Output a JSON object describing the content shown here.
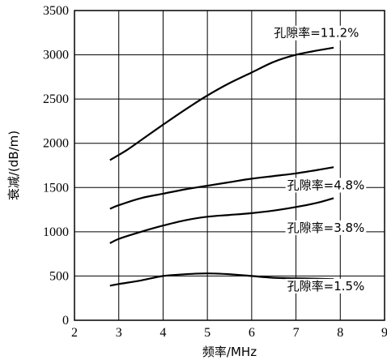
{
  "chart_data": {
    "type": "line",
    "xlabel": "频率/MHz",
    "ylabel": "衰减/(dB/m)",
    "xlim": [
      2,
      9
    ],
    "ylim": [
      0,
      3500
    ],
    "xticks": [
      2,
      3,
      4,
      5,
      6,
      7,
      8,
      9
    ],
    "yticks": [
      0,
      500,
      1000,
      1500,
      2000,
      2500,
      3000,
      3500
    ],
    "grid": true,
    "series": [
      {
        "name": "孔隙率=11.2%",
        "x": [
          2.8,
          3.2,
          3.6,
          4.0,
          4.5,
          5.0,
          5.5,
          6.0,
          6.5,
          7.0,
          7.5,
          7.85
        ],
        "y": [
          1810,
          1930,
          2070,
          2210,
          2380,
          2540,
          2680,
          2800,
          2920,
          3000,
          3050,
          3080
        ]
      },
      {
        "name": "孔隙率=4.8%",
        "x": [
          2.8,
          3.0,
          3.5,
          4.0,
          4.5,
          5.0,
          5.5,
          6.0,
          6.5,
          7.0,
          7.5,
          7.85
        ],
        "y": [
          1260,
          1300,
          1380,
          1430,
          1480,
          1520,
          1560,
          1600,
          1630,
          1660,
          1700,
          1730
        ]
      },
      {
        "name": "孔隙率=3.8%",
        "x": [
          2.8,
          3.0,
          3.5,
          4.0,
          4.5,
          5.0,
          5.5,
          6.0,
          6.5,
          7.0,
          7.5,
          7.85
        ],
        "y": [
          870,
          920,
          1000,
          1070,
          1130,
          1170,
          1190,
          1210,
          1240,
          1280,
          1330,
          1380
        ]
      },
      {
        "name": "孔隙率=1.5%",
        "x": [
          2.8,
          3.0,
          3.5,
          4.0,
          4.5,
          5.0,
          5.5,
          6.0,
          6.5,
          7.0,
          7.5,
          7.85
        ],
        "y": [
          390,
          410,
          450,
          500,
          520,
          530,
          520,
          500,
          480,
          475,
          470,
          465
        ]
      }
    ]
  }
}
